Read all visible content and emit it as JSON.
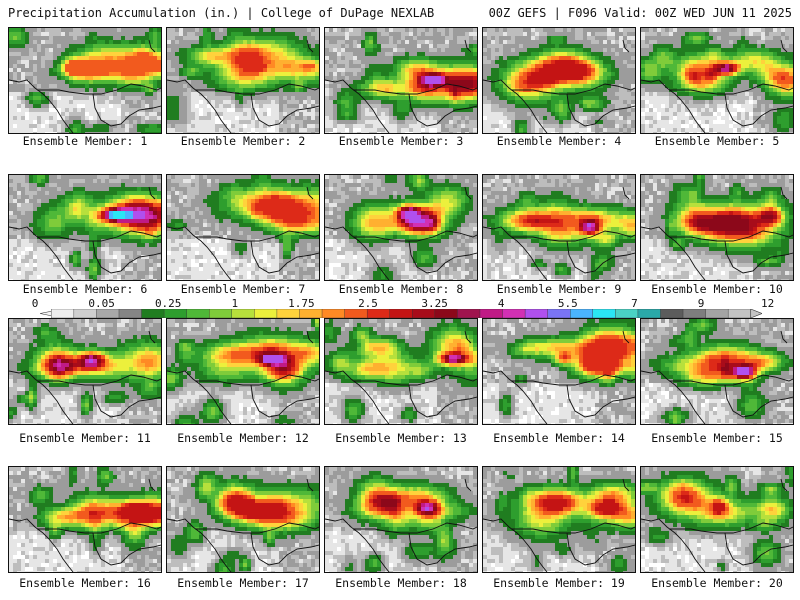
{
  "header": {
    "left": "Precipitation Accumulation (in.) | College of DuPage NEXLAB",
    "right": "00Z GEFS | F096 Valid: 00Z WED JUN 11 2025"
  },
  "members": [
    {
      "label": "Ensemble Member: 1",
      "max": 2.8
    },
    {
      "label": "Ensemble Member: 2",
      "max": 3.2
    },
    {
      "label": "Ensemble Member: 3",
      "max": 5.5
    },
    {
      "label": "Ensemble Member: 4",
      "max": 3.3
    },
    {
      "label": "Ensemble Member: 5",
      "max": 5.5
    },
    {
      "label": "Ensemble Member: 6",
      "max": 7.0
    },
    {
      "label": "Ensemble Member: 7",
      "max": 3.0
    },
    {
      "label": "Ensemble Member: 8",
      "max": 5.5
    },
    {
      "label": "Ensemble Member: 9",
      "max": 5.5
    },
    {
      "label": "Ensemble Member: 10",
      "max": 4.0
    },
    {
      "label": "Ensemble Member: 11",
      "max": 5.5
    },
    {
      "label": "Ensemble Member: 12",
      "max": 5.5
    },
    {
      "label": "Ensemble Member: 13",
      "max": 5.5
    },
    {
      "label": "Ensemble Member: 14",
      "max": 3.0
    },
    {
      "label": "Ensemble Member: 15",
      "max": 5.5
    },
    {
      "label": "Ensemble Member: 16",
      "max": 3.3
    },
    {
      "label": "Ensemble Member: 17",
      "max": 3.3
    },
    {
      "label": "Ensemble Member: 18",
      "max": 5.5
    },
    {
      "label": "Ensemble Member: 19",
      "max": 3.3
    },
    {
      "label": "Ensemble Member: 20",
      "max": 3.3
    }
  ],
  "colorbar": {
    "ticks": [
      "0",
      "0.05",
      "0.25",
      "1",
      "1.75",
      "2.5",
      "3.25",
      "4",
      "5.5",
      "7",
      "9",
      "12"
    ],
    "colors": [
      "#eeeeee",
      "#cfcfcf",
      "#a8a8a8",
      "#858585",
      "#207d20",
      "#2e9e2e",
      "#4fb838",
      "#7fcc3a",
      "#b7e03c",
      "#ecf03c",
      "#ffd23c",
      "#ffb030",
      "#ff8a24",
      "#f25a1e",
      "#dd2a18",
      "#c41414",
      "#a80c1a",
      "#8c081a",
      "#a0144e",
      "#c01a86",
      "#d230b4",
      "#b050ee",
      "#7a74f4",
      "#4ab4ff",
      "#2ae6f4",
      "#4ad2c4",
      "#2aa8a8",
      "#5c5c5c",
      "#7e7e7e",
      "#a4a4a4",
      "#c4c4c4"
    ]
  }
}
